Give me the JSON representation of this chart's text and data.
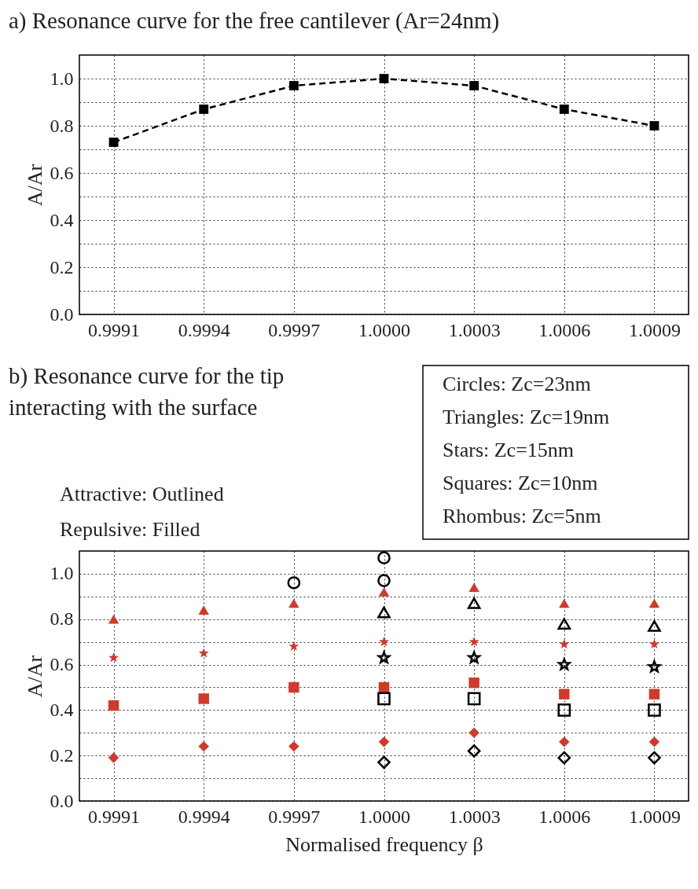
{
  "chart_data": [
    {
      "type": "line",
      "title": "a) Resonance curve for the free cantilever (Ar=24nm)",
      "ylabel": "A/Ar",
      "categories": [
        "0.9991",
        "0.9994",
        "0.9997",
        "1.0000",
        "1.0003",
        "1.0006",
        "1.0009"
      ],
      "series": [
        {
          "color": "#000000",
          "values": [
            0.73,
            0.87,
            0.97,
            1.0,
            0.97,
            0.87,
            0.8
          ],
          "marker": "square",
          "line_style": "dashed"
        }
      ],
      "ylim": [
        0,
        1.1
      ],
      "yticks": [
        {
          "value": 0,
          "label": "0.0"
        },
        {
          "value": 0.1,
          "label": null
        },
        0.2,
        {
          "value": 0.3,
          "label": null
        },
        0.4,
        {
          "value": 0.5,
          "label": null
        },
        0.6,
        {
          "value": 0.7,
          "label": null
        },
        0.8,
        {
          "value": 0.9,
          "label": null
        },
        {
          "value": 1,
          "label": "1.0"
        }
      ],
      "grid": true,
      "legend": false
    },
    {
      "type": "scatter",
      "title": "b) Resonance curve for the tip\ninteracting with the surface",
      "xlabel": "Normalised frequency β",
      "ylabel": "A/Ar",
      "categories": [
        "0.9991",
        "0.9994",
        "0.9997",
        "1.0000",
        "1.0003",
        "1.0006",
        "1.0009"
      ],
      "series": [
        {
          "color": "#d0392b",
          "marker": "triangle",
          "values": [
            0.8,
            0.84,
            0.87,
            0.92,
            0.94,
            0.87,
            0.87
          ]
        },
        {
          "color": "#d0392b",
          "marker": "star",
          "values": [
            0.63,
            0.65,
            0.68,
            0.7,
            0.7,
            0.69,
            0.69
          ]
        },
        {
          "color": "#d0392b",
          "marker": "square",
          "values": [
            0.42,
            0.45,
            0.5,
            0.5,
            0.52,
            0.47,
            0.47
          ]
        },
        {
          "color": "#d0392b",
          "marker": "diamond",
          "values": [
            0.19,
            0.24,
            0.24,
            0.26,
            0.3,
            0.26,
            0.26
          ]
        },
        {
          "color": "#000000",
          "marker": "circle",
          "x": [
            "0.9997",
            "1.0000",
            "1.0000"
          ],
          "values": [
            0.96,
            1.07,
            0.97
          ]
        },
        {
          "color": "#000000",
          "marker": "triangle",
          "x": [
            "1.0000",
            "1.0003",
            "1.0006",
            "1.0009"
          ],
          "values": [
            0.83,
            0.87,
            0.78,
            0.77
          ]
        },
        {
          "color": "#000000",
          "marker": "star",
          "x": [
            "1.0000",
            "1.0003",
            "1.0006",
            "1.0009"
          ],
          "values": [
            0.63,
            0.63,
            0.6,
            0.59
          ]
        },
        {
          "color": "#000000",
          "marker": "square",
          "x": [
            "1.0000",
            "1.0003",
            "1.0006",
            "1.0009"
          ],
          "values": [
            0.45,
            0.45,
            0.4,
            0.4
          ]
        },
        {
          "color": "#000000",
          "marker": "diamond",
          "x": [
            "1.0000",
            "1.0003",
            "1.0006",
            "1.0009"
          ],
          "values": [
            0.17,
            0.22,
            0.19,
            0.19
          ]
        }
      ],
      "ylim": [
        0,
        1.1
      ],
      "yticks": [
        {
          "value": 0,
          "label": "0.0"
        },
        {
          "value": 0.1,
          "label": null
        },
        0.2,
        {
          "value": 0.3,
          "label": null
        },
        0.4,
        {
          "value": 0.5,
          "label": null
        },
        0.6,
        {
          "value": 0.7,
          "label": null
        },
        0.8,
        {
          "value": 0.9,
          "label": null
        },
        {
          "value": 1,
          "label": "1.0"
        }
      ],
      "grid": true,
      "legend": false,
      "annotations": [
        "Attractive: Outlined",
        "Repulsive: Filled",
        "Circles:      Zc=23nm",
        "Triangles:  Zc=19nm",
        "Stars:          Zc=15nm",
        "Squares:     Zc=10nm",
        "Rhombus:  Zc=5nm"
      ]
    }
  ]
}
